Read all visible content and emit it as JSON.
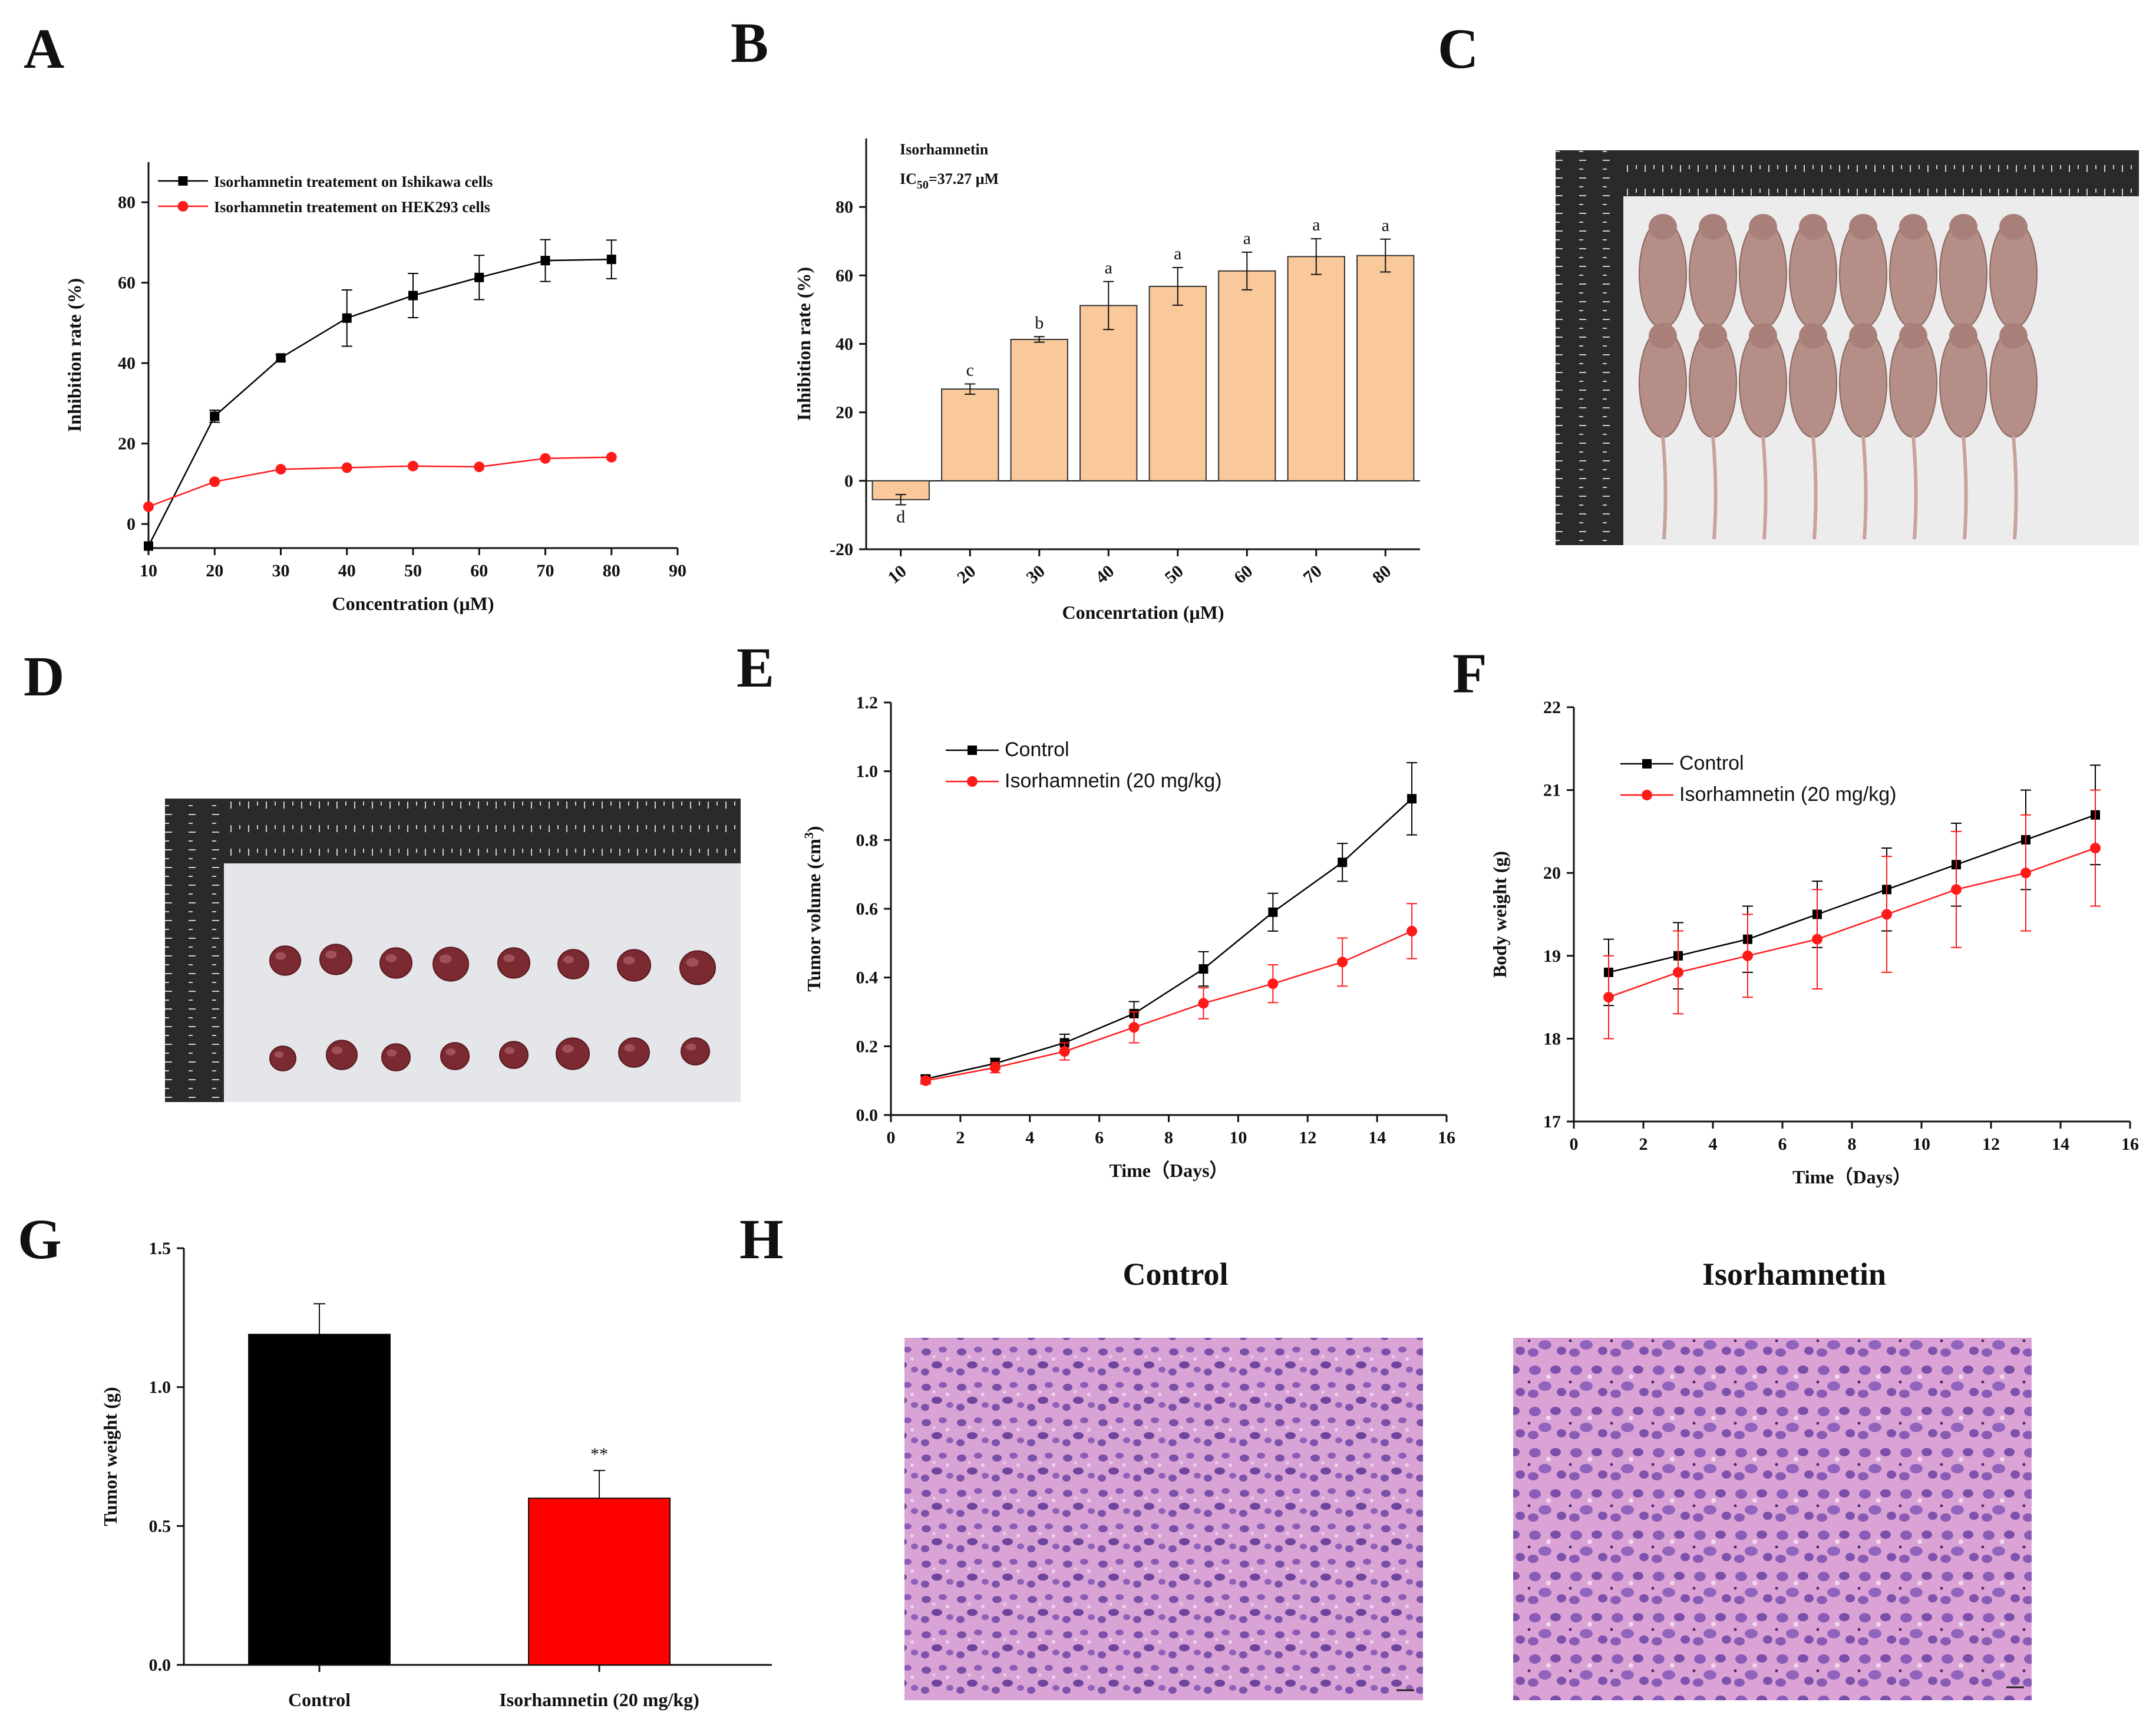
{
  "panels": {
    "A": {
      "letter": "A"
    },
    "B": {
      "letter": "B"
    },
    "C": {
      "letter": "C"
    },
    "D": {
      "letter": "D"
    },
    "E": {
      "letter": "E"
    },
    "F": {
      "letter": "F"
    },
    "G": {
      "letter": "G"
    },
    "H": {
      "letter": "H"
    }
  },
  "colors": {
    "black": "#000000",
    "red": "#ff1a1a",
    "bar_fill": "#f9c99b",
    "bar_red": "#ff0000"
  },
  "photos": {
    "C": {
      "description_icon": "mouse-photo-icon"
    },
    "D": {
      "description_icon": "tumor-photo-icon"
    },
    "H": {
      "left_title": "Control",
      "right_title": "Isorhamnetin"
    }
  },
  "chart_data": [
    {
      "id": "A",
      "type": "line",
      "xlabel": "Concentration (μM)",
      "ylabel": "Inhibition rate (%)",
      "xlim": [
        10,
        90
      ],
      "ylim": [
        -6,
        90
      ],
      "xticks": [
        10,
        20,
        30,
        40,
        50,
        60,
        70,
        80,
        90
      ],
      "yticks": [
        0,
        20,
        40,
        60,
        80
      ],
      "legend_position": "top-left",
      "series": [
        {
          "name": "Isorhamnetin treatement on Ishikawa cells",
          "color": "#000000",
          "marker": "square",
          "x": [
            10,
            20,
            30,
            40,
            50,
            60,
            70,
            80
          ],
          "values": [
            -5.5,
            26.8,
            41.3,
            51.2,
            56.8,
            61.3,
            65.5,
            65.8
          ],
          "err": [
            0,
            1.5,
            0.8,
            7,
            5.5,
            5.5,
            5.2,
            4.8
          ]
        },
        {
          "name": "Isorhamnetin treatement on HEK293 cells",
          "color": "#ff1a1a",
          "marker": "circle",
          "x": [
            10,
            20,
            30,
            40,
            50,
            60,
            70,
            80
          ],
          "values": [
            4.3,
            10.5,
            13.6,
            14.0,
            14.4,
            14.2,
            16.3,
            16.6
          ],
          "err": [
            0,
            0,
            0,
            0,
            0,
            0,
            0,
            0
          ]
        }
      ]
    },
    {
      "id": "B",
      "type": "bar",
      "xlabel": "Concenrtation (μM)",
      "ylabel": "Inhibition rate (%)",
      "ylim": [
        -20,
        100
      ],
      "yticks": [
        -20,
        0,
        20,
        40,
        60,
        80
      ],
      "annotation_title": "Isorhamnetin",
      "annotation_ic_prefix": "IC",
      "annotation_ic_sub": "50",
      "annotation_ic_value": "=37.27 μM",
      "categories": [
        "10",
        "20",
        "30",
        "40",
        "50",
        "60",
        "70",
        "80"
      ],
      "values": [
        -5.5,
        26.8,
        41.3,
        51.2,
        56.8,
        61.3,
        65.5,
        65.8
      ],
      "err": [
        1.5,
        1.5,
        0.8,
        7,
        5.5,
        5.5,
        5.2,
        4.8
      ],
      "letters": [
        "d",
        "c",
        "b",
        "a",
        "a",
        "a",
        "a",
        "a"
      ]
    },
    {
      "id": "E",
      "type": "line",
      "xlabel": "Time（Days）",
      "ylabel_main": "Tumor volume (cm",
      "ylabel_sup": "3",
      "ylabel_end": ")",
      "xlim": [
        0,
        16
      ],
      "ylim": [
        0,
        1.2
      ],
      "xticks": [
        0,
        2,
        4,
        6,
        8,
        10,
        12,
        14,
        16
      ],
      "yticks": [
        "0.0",
        "0.2",
        "0.4",
        "0.6",
        "0.8",
        "1.0",
        "1.2"
      ],
      "legend_position": "top-left",
      "series": [
        {
          "name": "Control",
          "color": "#000000",
          "marker": "square",
          "x": [
            1,
            3,
            5,
            7,
            9,
            11,
            13,
            15
          ],
          "values": [
            0.105,
            0.15,
            0.21,
            0.295,
            0.425,
            0.59,
            0.735,
            0.92
          ],
          "err": [
            0.01,
            0.015,
            0.025,
            0.035,
            0.05,
            0.055,
            0.055,
            0.105
          ]
        },
        {
          "name": "Isorhamnetin (20 mg/kg)",
          "color": "#ff1a1a",
          "marker": "circle",
          "x": [
            1,
            3,
            5,
            7,
            9,
            11,
            13,
            15
          ],
          "values": [
            0.1,
            0.138,
            0.185,
            0.255,
            0.325,
            0.382,
            0.445,
            0.535
          ],
          "err": [
            0.01,
            0.015,
            0.025,
            0.045,
            0.045,
            0.055,
            0.07,
            0.08
          ]
        }
      ]
    },
    {
      "id": "F",
      "type": "line",
      "xlabel": "Time（Days）",
      "ylabel": "Body  weight (g)",
      "xlim": [
        0,
        16
      ],
      "ylim": [
        17,
        22
      ],
      "xticks": [
        0,
        2,
        4,
        6,
        8,
        10,
        12,
        14,
        16
      ],
      "yticks": [
        17,
        18,
        19,
        20,
        21,
        22
      ],
      "legend_position": "top-left",
      "series": [
        {
          "name": "Control",
          "color": "#000000",
          "marker": "square",
          "x": [
            1,
            3,
            5,
            7,
            9,
            11,
            13,
            15
          ],
          "values": [
            18.8,
            19.0,
            19.2,
            19.5,
            19.8,
            20.1,
            20.4,
            20.7
          ],
          "err": [
            0.4,
            0.4,
            0.4,
            0.4,
            0.5,
            0.5,
            0.6,
            0.6
          ]
        },
        {
          "name": "Isorhamnetin (20 mg/kg)",
          "color": "#ff1a1a",
          "marker": "circle",
          "x": [
            1,
            3,
            5,
            7,
            9,
            11,
            13,
            15
          ],
          "values": [
            18.5,
            18.8,
            19.0,
            19.2,
            19.5,
            19.8,
            20.0,
            20.3
          ],
          "err": [
            0.5,
            0.5,
            0.5,
            0.6,
            0.7,
            0.7,
            0.7,
            0.7
          ]
        }
      ]
    },
    {
      "id": "G",
      "type": "bar",
      "xlabel": "",
      "ylabel": "Tumor weight (g)",
      "ylim": [
        0,
        1.5
      ],
      "yticks": [
        "0.0",
        "0.5",
        "1.0",
        "1.5"
      ],
      "categories": [
        "Control",
        "Isorhamnetin (20 mg/kg)"
      ],
      "values": [
        1.19,
        0.6
      ],
      "err": [
        0.11,
        0.1
      ],
      "bar_colors": [
        "#000000",
        "#ff0000"
      ],
      "annotations": [
        "",
        "**"
      ]
    }
  ]
}
